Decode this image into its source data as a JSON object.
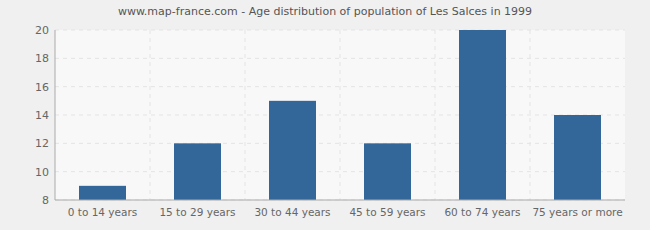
{
  "chart_data": {
    "type": "bar",
    "title": "www.map-france.com - Age distribution of population of Les Salces in 1999",
    "categories": [
      "0 to 14 years",
      "15 to 29 years",
      "30 to 44 years",
      "45 to 59 years",
      "60 to 74 years",
      "75 years or more"
    ],
    "values": [
      9,
      12,
      15,
      12,
      20,
      14
    ],
    "color": "#336699",
    "ylim": [
      8,
      20
    ],
    "yticks": [
      8,
      10,
      12,
      14,
      16,
      18,
      20
    ],
    "grid": true
  }
}
